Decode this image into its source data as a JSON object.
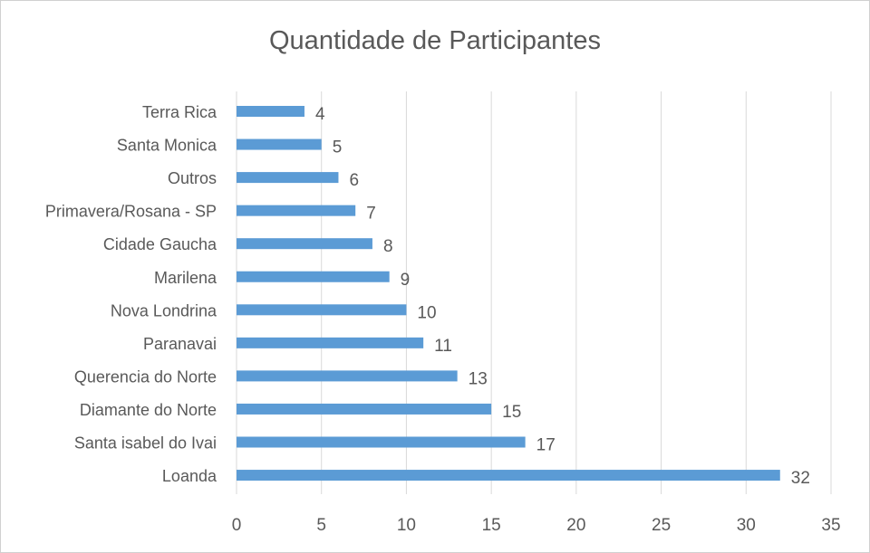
{
  "chart_data": {
    "type": "bar",
    "orientation": "horizontal",
    "title": "Quantidade de Participantes",
    "categories": [
      "Terra Rica",
      "Santa Monica",
      "Outros",
      "Primavera/Rosana - SP",
      "Cidade Gaucha",
      "Marilena",
      "Nova Londrina",
      "Paranavai",
      "Querencia do Norte",
      "Diamante do Norte",
      "Santa isabel do Ivai",
      "Loanda"
    ],
    "values": [
      4,
      5,
      6,
      7,
      8,
      9,
      10,
      11,
      13,
      15,
      17,
      32
    ],
    "xlim": [
      0,
      35
    ],
    "xticks": [
      0,
      5,
      10,
      15,
      20,
      25,
      30,
      35
    ],
    "xlabel": "",
    "ylabel": "",
    "grid": true,
    "data_labels": true,
    "colors": {
      "bar": "#5B9BD5",
      "grid": "#D9D9D9",
      "text": "#595959"
    }
  }
}
